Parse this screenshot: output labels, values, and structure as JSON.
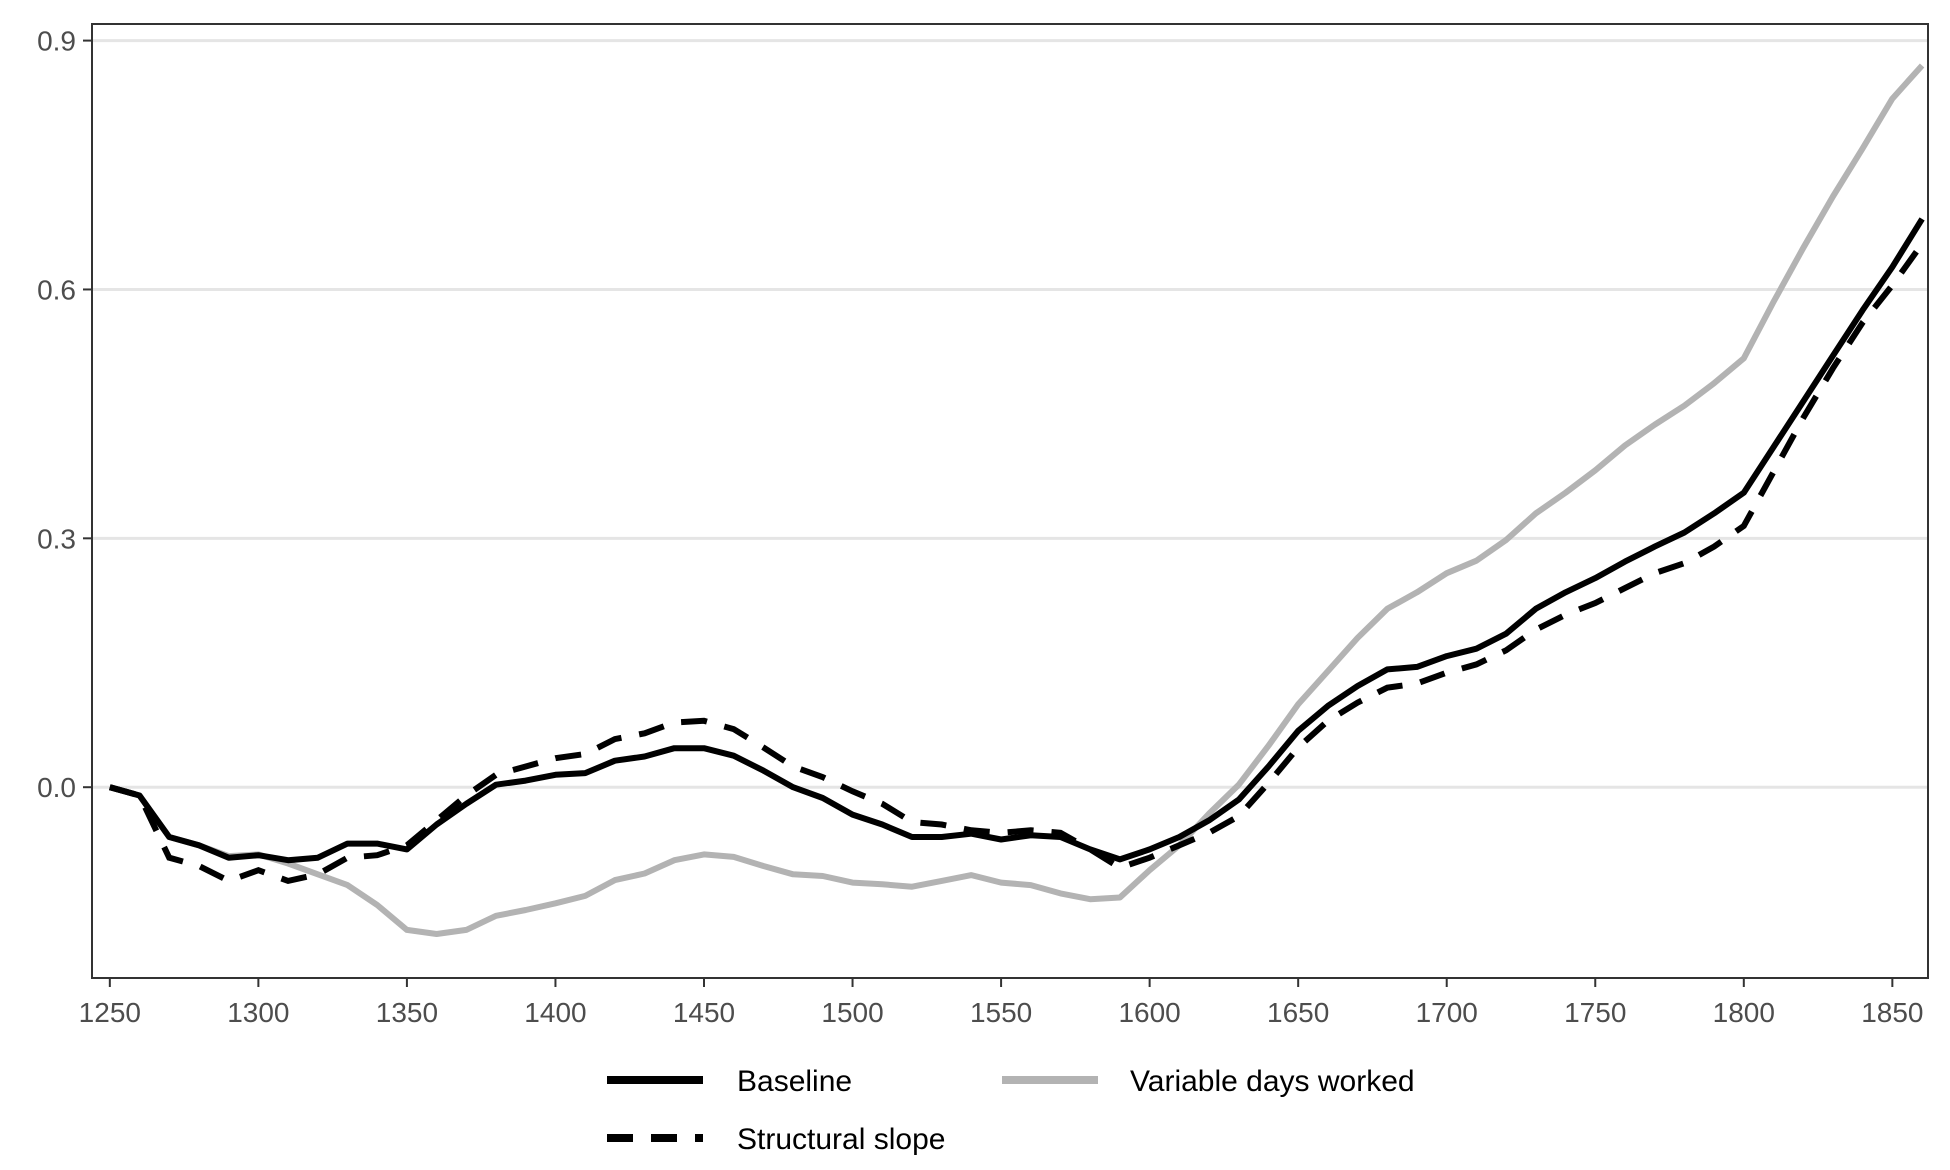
{
  "chart_data": {
    "type": "line",
    "title": "",
    "xlabel": "",
    "ylabel": "",
    "xlim": [
      1244,
      1862
    ],
    "ylim": [
      -0.23,
      0.92
    ],
    "x_ticks": [
      1250,
      1300,
      1350,
      1400,
      1450,
      1500,
      1550,
      1600,
      1650,
      1700,
      1750,
      1800,
      1850
    ],
    "y_ticks": [
      0.0,
      0.3,
      0.6,
      0.9
    ],
    "y_tick_labels": [
      "0.0",
      "0.3",
      "0.6",
      "0.9"
    ],
    "grid": "horizontal",
    "legend_position": "bottom",
    "series": [
      {
        "name": "Baseline",
        "style": "solid",
        "color": "#000000",
        "points": [
          [
            1250,
            0.0
          ],
          [
            1260,
            -0.01
          ],
          [
            1270,
            -0.06
          ],
          [
            1280,
            -0.07
          ],
          [
            1290,
            -0.085
          ],
          [
            1300,
            -0.082
          ],
          [
            1310,
            -0.088
          ],
          [
            1320,
            -0.085
          ],
          [
            1330,
            -0.068
          ],
          [
            1340,
            -0.068
          ],
          [
            1350,
            -0.075
          ],
          [
            1360,
            -0.045
          ],
          [
            1370,
            -0.02
          ],
          [
            1380,
            0.003
          ],
          [
            1390,
            0.008
          ],
          [
            1400,
            0.015
          ],
          [
            1410,
            0.017
          ],
          [
            1420,
            0.032
          ],
          [
            1430,
            0.037
          ],
          [
            1440,
            0.047
          ],
          [
            1450,
            0.047
          ],
          [
            1460,
            0.038
          ],
          [
            1470,
            0.02
          ],
          [
            1480,
            0.0
          ],
          [
            1490,
            -0.013
          ],
          [
            1500,
            -0.033
          ],
          [
            1510,
            -0.045
          ],
          [
            1520,
            -0.06
          ],
          [
            1530,
            -0.06
          ],
          [
            1540,
            -0.056
          ],
          [
            1550,
            -0.063
          ],
          [
            1560,
            -0.058
          ],
          [
            1570,
            -0.06
          ],
          [
            1580,
            -0.075
          ],
          [
            1590,
            -0.087
          ],
          [
            1600,
            -0.075
          ],
          [
            1610,
            -0.06
          ],
          [
            1620,
            -0.04
          ],
          [
            1630,
            -0.015
          ],
          [
            1640,
            0.025
          ],
          [
            1650,
            0.068
          ],
          [
            1660,
            0.098
          ],
          [
            1670,
            0.122
          ],
          [
            1680,
            0.142
          ],
          [
            1690,
            0.145
          ],
          [
            1700,
            0.158
          ],
          [
            1710,
            0.167
          ],
          [
            1720,
            0.185
          ],
          [
            1730,
            0.215
          ],
          [
            1740,
            0.235
          ],
          [
            1750,
            0.252
          ],
          [
            1760,
            0.272
          ],
          [
            1770,
            0.29
          ],
          [
            1780,
            0.307
          ],
          [
            1790,
            0.33
          ],
          [
            1800,
            0.355
          ],
          [
            1810,
            0.41
          ],
          [
            1820,
            0.465
          ],
          [
            1830,
            0.52
          ],
          [
            1840,
            0.575
          ],
          [
            1850,
            0.627
          ],
          [
            1860,
            0.685
          ]
        ]
      },
      {
        "name": "Variable days worked",
        "style": "solid",
        "color": "#b3b3b3",
        "points": [
          [
            1250,
            0.0
          ],
          [
            1260,
            -0.01
          ],
          [
            1270,
            -0.06
          ],
          [
            1280,
            -0.07
          ],
          [
            1290,
            -0.083
          ],
          [
            1300,
            -0.081
          ],
          [
            1310,
            -0.092
          ],
          [
            1320,
            -0.105
          ],
          [
            1330,
            -0.118
          ],
          [
            1340,
            -0.142
          ],
          [
            1350,
            -0.172
          ],
          [
            1360,
            -0.177
          ],
          [
            1370,
            -0.172
          ],
          [
            1380,
            -0.155
          ],
          [
            1390,
            -0.148
          ],
          [
            1400,
            -0.14
          ],
          [
            1410,
            -0.131
          ],
          [
            1420,
            -0.112
          ],
          [
            1430,
            -0.104
          ],
          [
            1440,
            -0.088
          ],
          [
            1450,
            -0.081
          ],
          [
            1460,
            -0.084
          ],
          [
            1470,
            -0.095
          ],
          [
            1480,
            -0.105
          ],
          [
            1490,
            -0.107
          ],
          [
            1500,
            -0.115
          ],
          [
            1510,
            -0.117
          ],
          [
            1520,
            -0.12
          ],
          [
            1530,
            -0.113
          ],
          [
            1540,
            -0.106
          ],
          [
            1550,
            -0.115
          ],
          [
            1560,
            -0.118
          ],
          [
            1570,
            -0.128
          ],
          [
            1580,
            -0.135
          ],
          [
            1590,
            -0.133
          ],
          [
            1600,
            -0.1
          ],
          [
            1610,
            -0.07
          ],
          [
            1620,
            -0.032
          ],
          [
            1630,
            0.003
          ],
          [
            1640,
            0.05
          ],
          [
            1650,
            0.1
          ],
          [
            1660,
            0.14
          ],
          [
            1670,
            0.18
          ],
          [
            1680,
            0.215
          ],
          [
            1690,
            0.235
          ],
          [
            1700,
            0.258
          ],
          [
            1710,
            0.273
          ],
          [
            1720,
            0.298
          ],
          [
            1730,
            0.33
          ],
          [
            1740,
            0.355
          ],
          [
            1750,
            0.382
          ],
          [
            1760,
            0.412
          ],
          [
            1770,
            0.437
          ],
          [
            1780,
            0.46
          ],
          [
            1790,
            0.487
          ],
          [
            1800,
            0.517
          ],
          [
            1810,
            0.585
          ],
          [
            1820,
            0.65
          ],
          [
            1830,
            0.712
          ],
          [
            1840,
            0.77
          ],
          [
            1850,
            0.83
          ],
          [
            1860,
            0.87
          ]
        ]
      },
      {
        "name": "Structural slope",
        "style": "dashed",
        "color": "#000000",
        "points": [
          [
            1250,
            0.0
          ],
          [
            1260,
            -0.01
          ],
          [
            1270,
            -0.085
          ],
          [
            1280,
            -0.095
          ],
          [
            1290,
            -0.113
          ],
          [
            1300,
            -0.1
          ],
          [
            1310,
            -0.113
          ],
          [
            1320,
            -0.105
          ],
          [
            1330,
            -0.085
          ],
          [
            1340,
            -0.082
          ],
          [
            1350,
            -0.07
          ],
          [
            1360,
            -0.04
          ],
          [
            1370,
            -0.01
          ],
          [
            1380,
            0.015
          ],
          [
            1390,
            0.025
          ],
          [
            1400,
            0.035
          ],
          [
            1410,
            0.04
          ],
          [
            1420,
            0.058
          ],
          [
            1430,
            0.065
          ],
          [
            1440,
            0.078
          ],
          [
            1450,
            0.08
          ],
          [
            1460,
            0.07
          ],
          [
            1470,
            0.048
          ],
          [
            1480,
            0.025
          ],
          [
            1490,
            0.012
          ],
          [
            1500,
            -0.005
          ],
          [
            1510,
            -0.02
          ],
          [
            1520,
            -0.042
          ],
          [
            1530,
            -0.045
          ],
          [
            1540,
            -0.052
          ],
          [
            1550,
            -0.055
          ],
          [
            1560,
            -0.052
          ],
          [
            1570,
            -0.055
          ],
          [
            1580,
            -0.075
          ],
          [
            1590,
            -0.097
          ],
          [
            1600,
            -0.085
          ],
          [
            1610,
            -0.07
          ],
          [
            1620,
            -0.055
          ],
          [
            1630,
            -0.035
          ],
          [
            1640,
            0.005
          ],
          [
            1650,
            0.048
          ],
          [
            1660,
            0.08
          ],
          [
            1670,
            0.102
          ],
          [
            1680,
            0.12
          ],
          [
            1690,
            0.125
          ],
          [
            1700,
            0.138
          ],
          [
            1710,
            0.148
          ],
          [
            1720,
            0.165
          ],
          [
            1730,
            0.19
          ],
          [
            1740,
            0.208
          ],
          [
            1750,
            0.222
          ],
          [
            1760,
            0.24
          ],
          [
            1770,
            0.258
          ],
          [
            1780,
            0.27
          ],
          [
            1790,
            0.29
          ],
          [
            1800,
            0.315
          ],
          [
            1810,
            0.38
          ],
          [
            1820,
            0.445
          ],
          [
            1830,
            0.505
          ],
          [
            1840,
            0.56
          ],
          [
            1850,
            0.605
          ],
          [
            1860,
            0.655
          ]
        ]
      }
    ]
  },
  "legend": {
    "items": [
      {
        "label": "Baseline",
        "color": "#000000",
        "style": "solid"
      },
      {
        "label": "Variable days worked",
        "color": "#b3b3b3",
        "style": "solid"
      },
      {
        "label": "Structural slope",
        "color": "#000000",
        "style": "dashed"
      }
    ]
  }
}
